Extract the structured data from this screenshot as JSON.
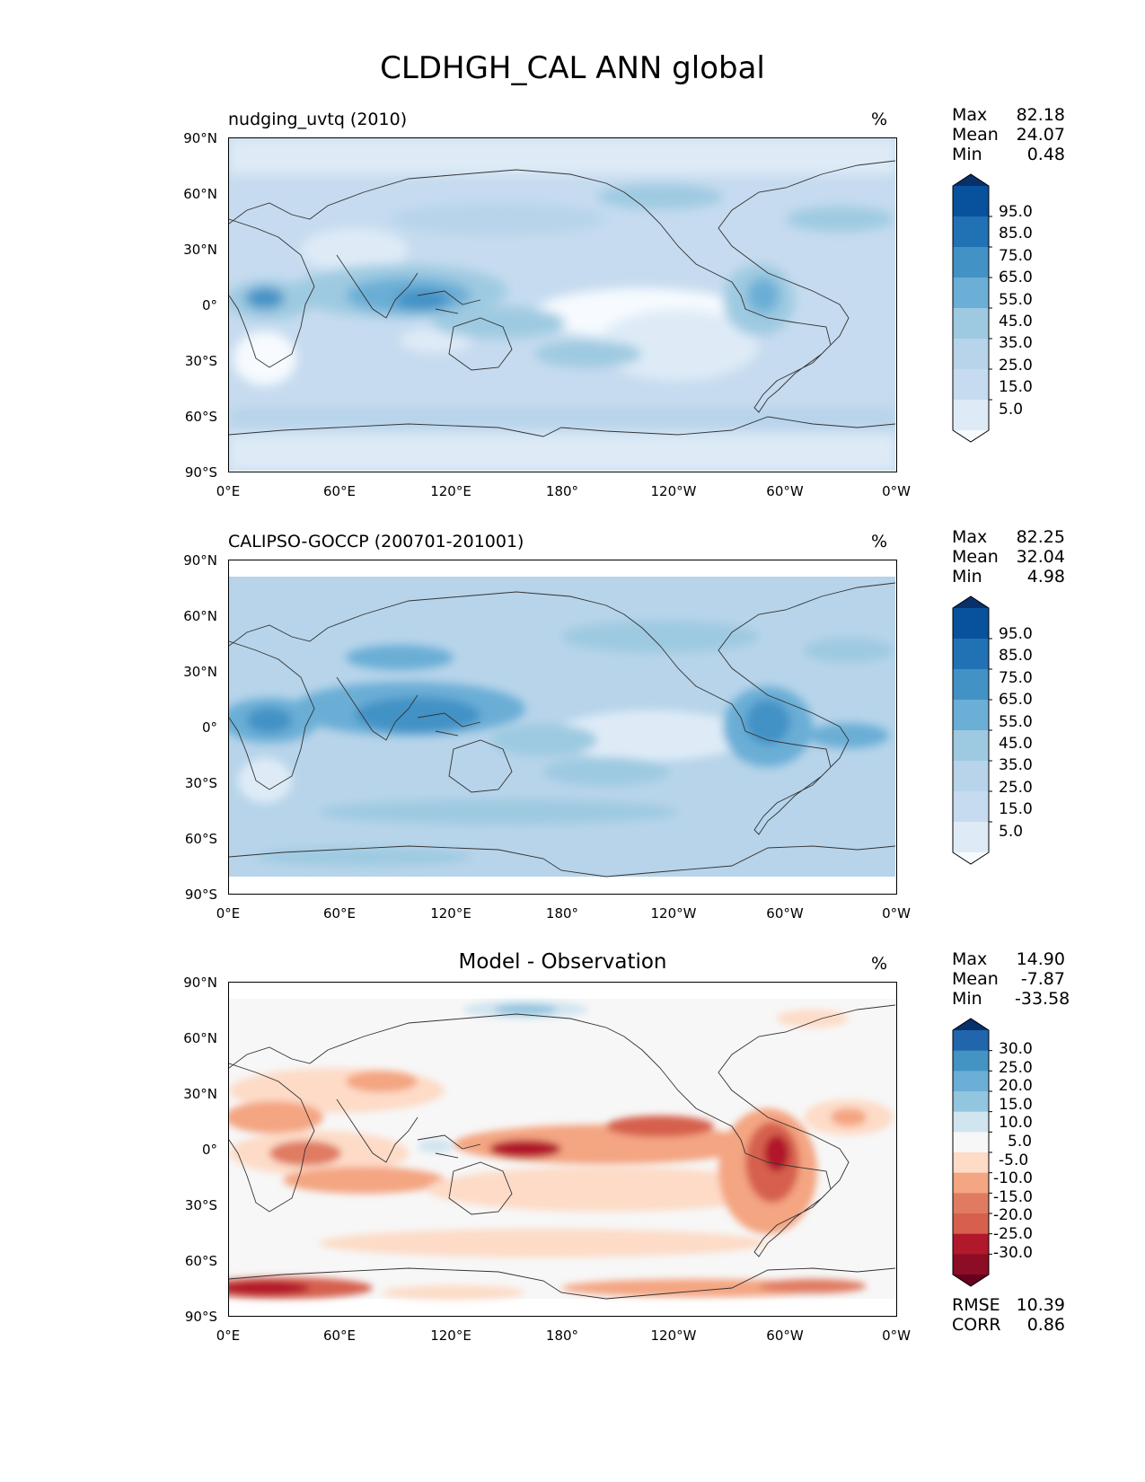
{
  "title": "CLDHGH_CAL ANN global",
  "lat_ticks": [
    "90°N",
    "60°N",
    "30°N",
    "0°",
    "30°S",
    "60°S",
    "90°S"
  ],
  "lon_ticks": [
    "0°E",
    "60°E",
    "120°E",
    "180°",
    "120°W",
    "60°W",
    "0°W"
  ],
  "panels": [
    {
      "title": "nudging_uvtq (2010)",
      "unit": "%",
      "stats": [
        {
          "label": "Max",
          "value": "82.18"
        },
        {
          "label": "Mean",
          "value": "24.07"
        },
        {
          "label": "Min",
          "value": "0.48"
        }
      ],
      "colorbar": {
        "labels": [
          "95.0",
          "85.0",
          "75.0",
          "65.0",
          "55.0",
          "45.0",
          "35.0",
          "25.0",
          "15.0",
          "5.0"
        ],
        "colors": [
          "#08306b",
          "#08519c",
          "#2171b5",
          "#4292c6",
          "#6baed6",
          "#9ecae1",
          "#b7d4ea",
          "#c6dbef",
          "#deebf7",
          "#f7fbff"
        ]
      }
    },
    {
      "title": "CALIPSO-GOCCP (200701-201001)",
      "unit": "%",
      "stats": [
        {
          "label": "Max",
          "value": "82.25"
        },
        {
          "label": "Mean",
          "value": "32.04"
        },
        {
          "label": "Min",
          "value": "4.98"
        }
      ],
      "colorbar": {
        "labels": [
          "95.0",
          "85.0",
          "75.0",
          "65.0",
          "55.0",
          "45.0",
          "35.0",
          "25.0",
          "15.0",
          "5.0"
        ],
        "colors": [
          "#08306b",
          "#08519c",
          "#2171b5",
          "#4292c6",
          "#6baed6",
          "#9ecae1",
          "#b7d4ea",
          "#c6dbef",
          "#deebf7",
          "#f7fbff"
        ]
      }
    },
    {
      "title": "Model - Observation",
      "unit": "%",
      "stats": [
        {
          "label": "Max",
          "value": "14.90"
        },
        {
          "label": "Mean",
          "value": "-7.87"
        },
        {
          "label": "Min",
          "value": "-33.58"
        }
      ],
      "colorbar": {
        "labels": [
          "30.0",
          "25.0",
          "20.0",
          "15.0",
          "10.0",
          "5.0",
          "-5.0",
          "-10.0",
          "-15.0",
          "-20.0",
          "-25.0",
          "-30.0"
        ],
        "colors": [
          "#08306b",
          "#2166ac",
          "#4393c3",
          "#6baed6",
          "#92c5de",
          "#d1e5f0",
          "#f7f7f7",
          "#fddbc7",
          "#f4a582",
          "#e07b62",
          "#d6604d",
          "#b2182b",
          "#8c0d25",
          "#67001f"
        ]
      },
      "metrics": [
        {
          "label": "RMSE",
          "value": "10.39"
        },
        {
          "label": "CORR",
          "value": "0.86"
        }
      ]
    }
  ]
}
